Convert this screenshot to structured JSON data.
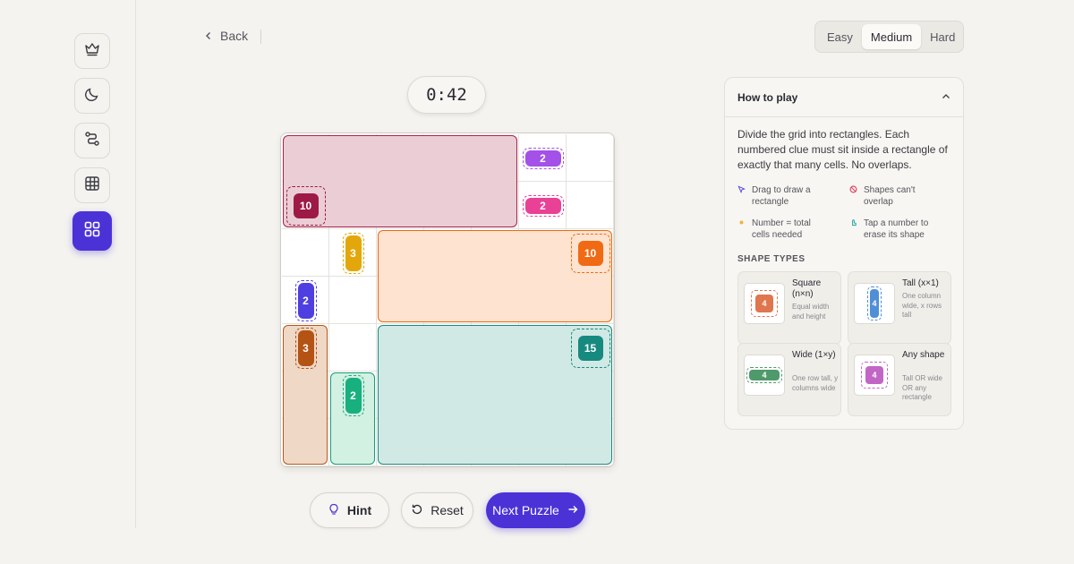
{
  "nav": {
    "back_label": "Back",
    "icons": [
      "crown-icon",
      "moon-icon",
      "route-icon",
      "grid-icon",
      "apps-icon"
    ]
  },
  "difficulty": {
    "options": [
      "Easy",
      "Medium",
      "Hard"
    ],
    "selected": "Medium"
  },
  "timer": "0:42",
  "board": {
    "rows": 7,
    "cols": 7,
    "regions": [
      {
        "color": "#a3264d",
        "fill": "#ebcdd6",
        "rows": [
          0,
          1
        ],
        "cols": [
          0,
          4
        ]
      },
      {
        "color": "#e86a10",
        "fill": "#fde3d0",
        "rows": [
          2,
          3
        ],
        "cols": [
          2,
          6
        ]
      },
      {
        "color": "#b35a1a",
        "fill": "#efd8c6",
        "rows": [
          4,
          6
        ],
        "cols": [
          0,
          0
        ]
      },
      {
        "color": "#169e78",
        "fill": "#d3f1e3",
        "rows": [
          5,
          6
        ],
        "cols": [
          1,
          1
        ]
      },
      {
        "color": "#1d8a80",
        "fill": "#d1e9e5",
        "rows": [
          4,
          6
        ],
        "cols": [
          2,
          6
        ]
      }
    ],
    "clues": [
      {
        "value": "2",
        "row": 0,
        "col": 5,
        "color": "#a351e8",
        "shape": "wide"
      },
      {
        "value": "10",
        "row": 1,
        "col": 0,
        "color": "#9d1a46",
        "shape": "square"
      },
      {
        "value": "2",
        "row": 1,
        "col": 5,
        "color": "#e94196",
        "shape": "wide"
      },
      {
        "value": "3",
        "row": 2,
        "col": 1,
        "color": "#e4a70b",
        "shape": "tall"
      },
      {
        "value": "10",
        "row": 2,
        "col": 6,
        "color": "#f06a13",
        "shape": "square"
      },
      {
        "value": "2",
        "row": 3,
        "col": 0,
        "color": "#4f3fe0",
        "shape": "tall"
      },
      {
        "value": "3",
        "row": 4,
        "col": 0,
        "color": "#b45314",
        "shape": "tall"
      },
      {
        "value": "15",
        "row": 4,
        "col": 6,
        "color": "#168a7f",
        "shape": "square"
      },
      {
        "value": "2",
        "row": 5,
        "col": 1,
        "color": "#17b07e",
        "shape": "tall"
      }
    ]
  },
  "actions": {
    "hint": "Hint",
    "reset": "Reset",
    "next": "Next Puzzle"
  },
  "help": {
    "title": "How to play",
    "description": "Divide the grid into rectangles. Each numbered clue must sit inside a rectangle of exactly that many cells. No overlaps.",
    "tips": [
      {
        "icon": "cursor-icon",
        "color": "#5a4ae0",
        "text": "Drag to draw a rectangle"
      },
      {
        "icon": "no-overlap-icon",
        "color": "#e33b5c",
        "text": "Shapes can't overlap"
      },
      {
        "icon": "dot-icon",
        "color": "#f0b23c",
        "text": "Number = total cells needed"
      },
      {
        "icon": "tap-icon",
        "color": "#1fa6a0",
        "text": "Tap a number to erase its shape"
      }
    ],
    "shape_types_title": "SHAPE TYPES",
    "shapes": [
      {
        "name": "Square (n×n)",
        "desc": "Equal width and height",
        "value": "4",
        "color": "#e0764d",
        "kind": "square"
      },
      {
        "name": "Tall (x×1)",
        "desc": "One column wide, x rows tall",
        "value": "4",
        "color": "#4f8fd6",
        "kind": "tall"
      },
      {
        "name": "Wide (1×y)",
        "desc": "One row tall, y columns wide",
        "value": "4",
        "color": "#4f9a6a",
        "kind": "wide"
      },
      {
        "name": "Any shape",
        "desc": "Tall OR wide OR any rectangle",
        "value": "4",
        "color": "#c266c6",
        "kind": "square"
      }
    ]
  }
}
